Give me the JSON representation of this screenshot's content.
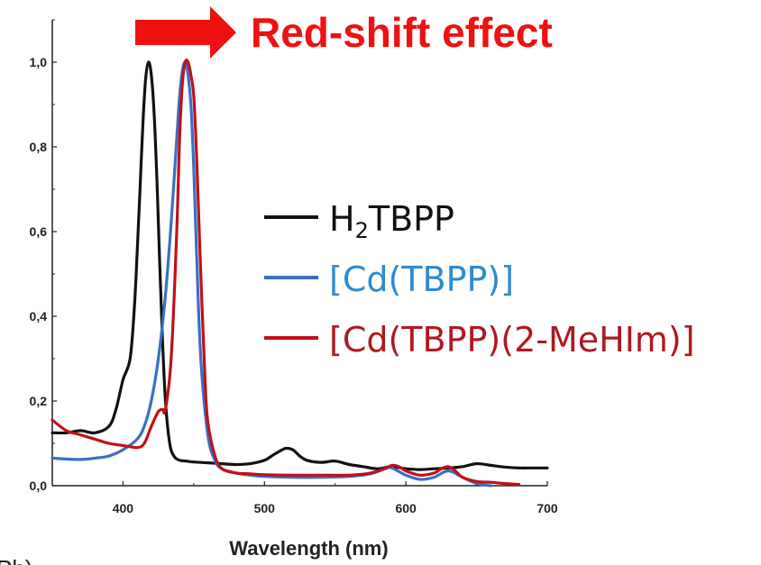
{
  "headline": {
    "text": "Red-shift effect",
    "color": "#ee1111",
    "arrow": "right-arrow-icon"
  },
  "partial_label": "Ph)",
  "chart_data": {
    "type": "line",
    "xlabel": "Wavelength (nm)",
    "ylabel": "",
    "xlim": [
      350,
      700
    ],
    "ylim": [
      0,
      1.1
    ],
    "xticks": [
      400,
      500,
      600,
      700
    ],
    "xtick_labels": [
      "400",
      "500",
      "600",
      "700"
    ],
    "yticks": [
      0,
      0.2,
      0.4,
      0.6,
      0.8,
      1.0
    ],
    "ytick_labels": [
      "0,0",
      "0,2",
      "0,4",
      "0,6",
      "0,8",
      "1,0"
    ],
    "grid": false,
    "legend_position": "right",
    "series": [
      {
        "name": "H2TBPP",
        "legend": {
          "main": "H",
          "sub": "2",
          "rest": "TBPP"
        },
        "color": "#111111",
        "text_color": "#111111",
        "x": [
          350,
          360,
          370,
          380,
          390,
          395,
          400,
          405,
          408,
          410,
          412,
          414,
          416,
          418,
          420,
          422,
          424,
          426,
          428,
          430,
          433,
          436,
          440,
          445,
          450,
          460,
          470,
          480,
          490,
          500,
          505,
          510,
          515,
          520,
          525,
          530,
          540,
          550,
          560,
          570,
          580,
          590,
          600,
          610,
          620,
          630,
          640,
          650,
          660,
          670,
          680,
          690,
          700
        ],
        "y": [
          0.125,
          0.125,
          0.13,
          0.125,
          0.14,
          0.18,
          0.25,
          0.3,
          0.42,
          0.55,
          0.7,
          0.85,
          0.96,
          1.0,
          0.97,
          0.88,
          0.72,
          0.52,
          0.34,
          0.2,
          0.1,
          0.07,
          0.06,
          0.058,
          0.056,
          0.054,
          0.052,
          0.05,
          0.052,
          0.06,
          0.07,
          0.08,
          0.088,
          0.085,
          0.07,
          0.06,
          0.055,
          0.058,
          0.05,
          0.045,
          0.04,
          0.045,
          0.04,
          0.038,
          0.04,
          0.042,
          0.045,
          0.052,
          0.048,
          0.044,
          0.042,
          0.042,
          0.042
        ]
      },
      {
        "name": "[Cd(TBPP)]",
        "legend": {
          "main": "[Cd(TBPP)]",
          "sub": "",
          "rest": ""
        },
        "color": "#3a6fc4",
        "text_color": "#2e8bd1",
        "x": [
          350,
          360,
          370,
          380,
          390,
          400,
          410,
          415,
          420,
          425,
          430,
          434,
          438,
          440,
          442,
          444,
          446,
          448,
          450,
          452,
          455,
          460,
          465,
          470,
          480,
          490,
          500,
          520,
          540,
          560,
          575,
          585,
          590,
          600,
          610,
          620,
          630,
          640,
          650,
          660
        ],
        "y": [
          0.065,
          0.063,
          0.062,
          0.065,
          0.07,
          0.085,
          0.11,
          0.14,
          0.2,
          0.3,
          0.45,
          0.62,
          0.82,
          0.92,
          0.98,
          1.0,
          0.97,
          0.9,
          0.75,
          0.55,
          0.3,
          0.12,
          0.06,
          0.04,
          0.03,
          0.025,
          0.022,
          0.02,
          0.02,
          0.022,
          0.028,
          0.04,
          0.042,
          0.025,
          0.015,
          0.02,
          0.035,
          0.02,
          0.005,
          0.0
        ]
      },
      {
        "name": "[Cd(TBPP)(2-MeHIm)]",
        "legend": {
          "main": "[Cd(TBPP)(2-MeHIm)]",
          "sub": "",
          "rest": ""
        },
        "color": "#c0101a",
        "text_color": "#b01820",
        "x": [
          350,
          360,
          370,
          380,
          390,
          400,
          410,
          415,
          420,
          425,
          428,
          430,
          434,
          438,
          440,
          442,
          444,
          446,
          448,
          450,
          452,
          455,
          458,
          460,
          465,
          470,
          480,
          490,
          500,
          520,
          540,
          560,
          575,
          585,
          590,
          595,
          600,
          610,
          620,
          625,
          630,
          635,
          640,
          650,
          660,
          670,
          680
        ],
        "y": [
          0.155,
          0.13,
          0.12,
          0.11,
          0.1,
          0.095,
          0.09,
          0.1,
          0.14,
          0.175,
          0.18,
          0.18,
          0.3,
          0.6,
          0.82,
          0.95,
          1.0,
          1.0,
          0.97,
          0.92,
          0.78,
          0.5,
          0.25,
          0.15,
          0.07,
          0.04,
          0.03,
          0.028,
          0.026,
          0.025,
          0.025,
          0.025,
          0.03,
          0.04,
          0.048,
          0.045,
          0.035,
          0.025,
          0.03,
          0.04,
          0.045,
          0.035,
          0.02,
          0.01,
          0.008,
          0.005,
          0.003
        ]
      }
    ]
  }
}
